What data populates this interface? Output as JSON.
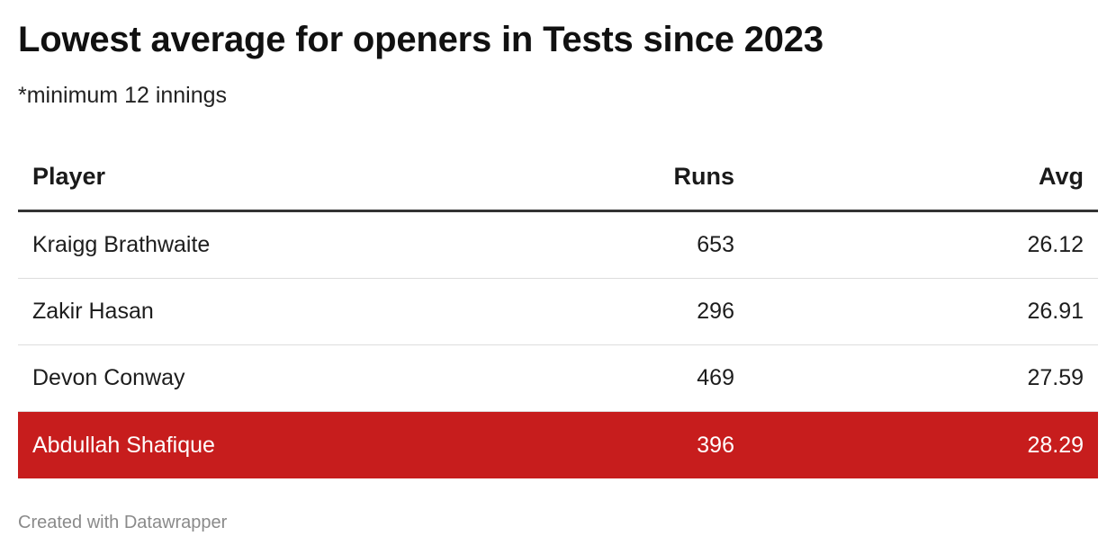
{
  "title": "Lowest average for openers in Tests since 2023",
  "subtitle": "*minimum 12 innings",
  "footer": "Created with Datawrapper",
  "colors": {
    "highlight": "#c71d1d",
    "header_rule": "#333333",
    "row_rule": "#dddddd"
  },
  "chart_data": {
    "type": "table",
    "columns": [
      "Player",
      "Runs",
      "Avg"
    ],
    "rows": [
      {
        "player": "Kraigg Brathwaite",
        "runs": "653",
        "avg": "26.12",
        "highlight": false
      },
      {
        "player": "Zakir Hasan",
        "runs": "296",
        "avg": "26.91",
        "highlight": false
      },
      {
        "player": "Devon Conway",
        "runs": "469",
        "avg": "27.59",
        "highlight": false
      },
      {
        "player": "Abdullah Shafique",
        "runs": "396",
        "avg": "28.29",
        "highlight": true
      }
    ]
  }
}
